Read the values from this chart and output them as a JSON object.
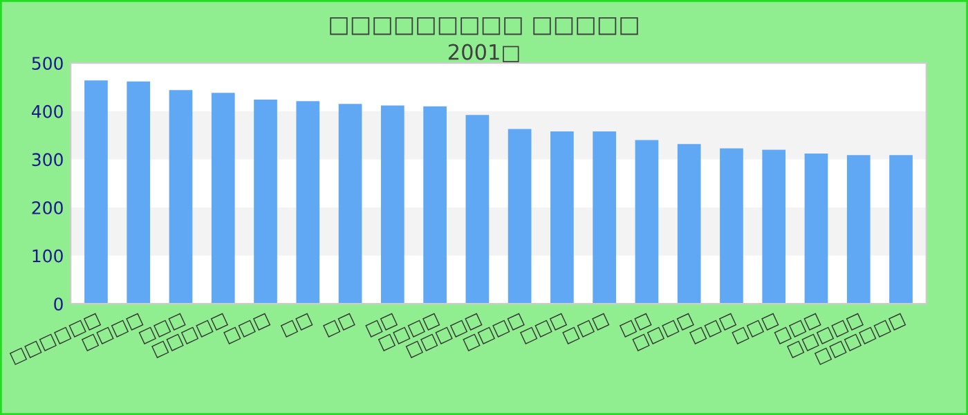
{
  "chart_data": {
    "type": "bar",
    "title": "□□□□□□□□□ □□□□□",
    "subtitle": "2001□",
    "categories": [
      "□□□□□□",
      "□□□□",
      "□□□",
      "□□□□□",
      "□□□",
      "□□",
      "□□",
      "□□",
      "□□□□",
      "□□□□□",
      "□□□□",
      "□□□",
      "□□□",
      "□□",
      "□□□□",
      "□□□",
      "□□□",
      "□□□",
      "□□□□□",
      "□□□□□□"
    ],
    "values": [
      464,
      462,
      444,
      438,
      424,
      421,
      415,
      412,
      410,
      392,
      363,
      358,
      358,
      340,
      332,
      323,
      320,
      312,
      309,
      309
    ],
    "color": "#60a8f4",
    "ylim": [
      0,
      500
    ],
    "yticks": [
      0,
      100,
      200,
      300,
      400,
      500
    ],
    "grid": false,
    "bands": [
      {
        "axis": "y",
        "from": 100,
        "to": 200,
        "color": "#f3f3f3"
      },
      {
        "axis": "y",
        "from": 300,
        "to": 400,
        "color": "#f3f3f3"
      }
    ]
  }
}
